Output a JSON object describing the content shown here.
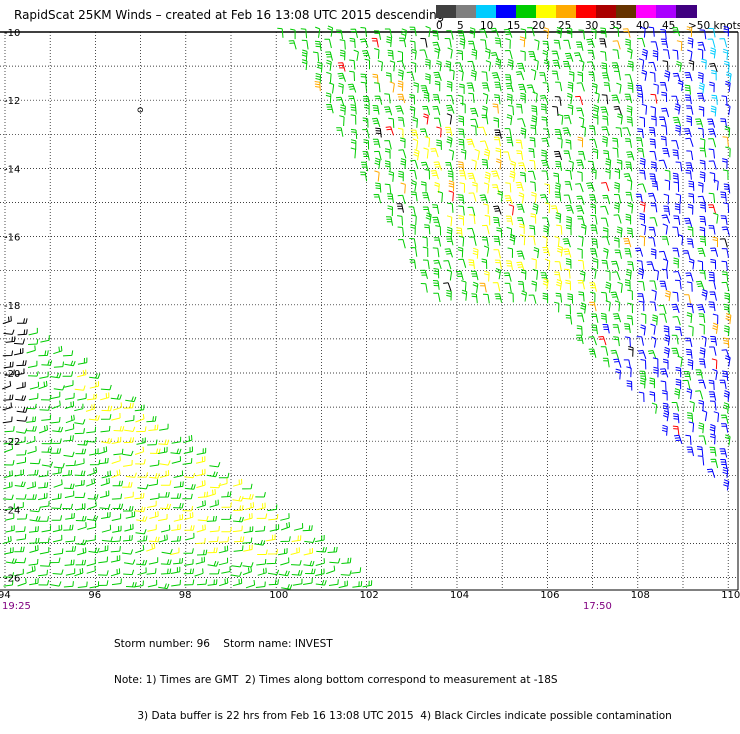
{
  "title": "RapidScat 25KM Winds – created at Feb 16 13:08 UTC 2015 descending",
  "legend": {
    "colors": [
      "#404040",
      "#7f7f7f",
      "#00ccff",
      "#0000ff",
      "#00cc00",
      "#ffff00",
      "#ffaa00",
      "#ff0000",
      "#aa0000",
      "#663300",
      "#ff00ff",
      "#aa00ff",
      "#400080"
    ],
    "labels": [
      "0",
      "5",
      "10",
      "15",
      "20",
      "25",
      "30",
      "35",
      "40",
      "45",
      ">50 knots"
    ]
  },
  "axes": {
    "lat_labels": [
      "-10",
      "-12",
      "-14",
      "-16",
      "-18",
      "-20",
      "-22",
      "-24",
      "-26"
    ],
    "lon_labels": [
      "94",
      "96",
      "98",
      "100",
      "102",
      "104",
      "106",
      "108",
      "110"
    ]
  },
  "swath_times": {
    "left": "19:25",
    "right": "17:50"
  },
  "stray_mark": "o",
  "notes": {
    "line1": "Storm number: 96    Storm name: INVEST",
    "line2": "Note: 1) Times are GMT  2) Times along bottom correspond to measurement at -18S",
    "line3": "       3) Data buffer is 22 hrs from Feb 16 13:08 UTC 2015  4) Black Circles indicate possible contamination"
  }
}
